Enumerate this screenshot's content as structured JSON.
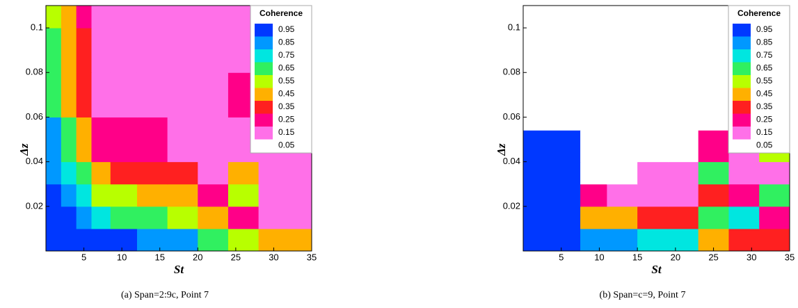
{
  "chart_data": [
    {
      "type": "heatmap",
      "caption": "(a) Span=2:9c, Point 7",
      "xlabel": "St",
      "ylabel": "Δz",
      "xlim": [
        0,
        35
      ],
      "ylim": [
        0,
        0.11
      ],
      "xticks": [
        5,
        10,
        15,
        20,
        25,
        30,
        35
      ],
      "yticks": [
        0.02,
        0.04,
        0.06,
        0.08,
        0.1
      ],
      "x_edges": [
        0,
        2,
        4,
        6,
        8.5,
        12,
        16,
        20,
        24,
        28,
        32,
        35
      ],
      "y_edges": [
        0,
        0.01,
        0.02,
        0.03,
        0.04,
        0.06,
        0.08,
        0.1,
        0.11
      ],
      "z": [
        [
          0.95,
          0.95,
          0.95,
          0.95,
          0.9,
          0.85,
          0.8,
          0.7,
          0.6,
          0.5,
          0.45
        ],
        [
          0.95,
          0.9,
          0.85,
          0.75,
          0.7,
          0.65,
          0.6,
          0.4,
          0.25,
          0.15,
          0.15
        ],
        [
          0.9,
          0.85,
          0.75,
          0.6,
          0.55,
          0.5,
          0.45,
          0.25,
          0.55,
          0.15,
          0.1
        ],
        [
          0.85,
          0.75,
          0.65,
          0.4,
          0.35,
          0.35,
          0.3,
          0.15,
          0.4,
          0.1,
          0.1
        ],
        [
          0.8,
          0.65,
          0.5,
          0.25,
          0.2,
          0.2,
          0.15,
          0.1,
          0.15,
          0.1,
          0.1
        ],
        [
          0.7,
          0.5,
          0.35,
          0.15,
          0.1,
          0.1,
          0.1,
          0.1,
          0.25,
          0.1,
          0.1
        ],
        [
          0.65,
          0.45,
          0.3,
          0.1,
          0.1,
          0.1,
          0.1,
          0.1,
          0.1,
          0.1,
          0.1
        ],
        [
          0.6,
          0.4,
          0.25,
          0.1,
          0.1,
          0.1,
          0.1,
          0.1,
          0.1,
          0.1,
          0.1
        ]
      ],
      "colorbar": {
        "title": "Coherence",
        "levels": [
          0.95,
          0.85,
          0.75,
          0.65,
          0.55,
          0.45,
          0.35,
          0.25,
          0.15,
          0.05
        ],
        "colors": [
          "#0038ff",
          "#0098ff",
          "#00e6e0",
          "#30f060",
          "#b8ff00",
          "#ffb000",
          "#ff2020",
          "#ff0088",
          "#ff70e8",
          "#ffffff"
        ]
      }
    },
    {
      "type": "heatmap",
      "caption": "(b) Span=c=9, Point 7",
      "xlabel": "St",
      "ylabel": "Δz",
      "xlim": [
        0,
        35
      ],
      "ylim": [
        0,
        0.11
      ],
      "xticks": [
        5,
        10,
        15,
        20,
        25,
        30,
        35
      ],
      "yticks": [
        0.02,
        0.04,
        0.06,
        0.08,
        0.1
      ],
      "x_edges": [
        0,
        7.5,
        11,
        15,
        19,
        23,
        27,
        31,
        35
      ],
      "y_edges": [
        0,
        0.01,
        0.02,
        0.03,
        0.04,
        0.054
      ],
      "z": [
        [
          0.95,
          0.85,
          0.85,
          0.75,
          0.75,
          0.45,
          0.35,
          0.35
        ],
        [
          0.95,
          0.45,
          0.45,
          0.35,
          0.35,
          0.65,
          0.75,
          0.25
        ],
        [
          0.95,
          0.25,
          0.15,
          0.15,
          0.15,
          0.35,
          0.25,
          0.65
        ],
        [
          0.95,
          0.05,
          0.05,
          0.1,
          0.1,
          0.65,
          0.15,
          0.15
        ],
        [
          0.95,
          0.05,
          0.05,
          0.05,
          0.05,
          0.25,
          0.15,
          0.55
        ]
      ],
      "colorbar": {
        "title": "Coherence",
        "levels": [
          0.95,
          0.85,
          0.75,
          0.65,
          0.55,
          0.45,
          0.35,
          0.25,
          0.15,
          0.05
        ],
        "colors": [
          "#0038ff",
          "#0098ff",
          "#00e6e0",
          "#30f060",
          "#b8ff00",
          "#ffb000",
          "#ff2020",
          "#ff0088",
          "#ff70e8",
          "#ffffff"
        ]
      }
    }
  ]
}
